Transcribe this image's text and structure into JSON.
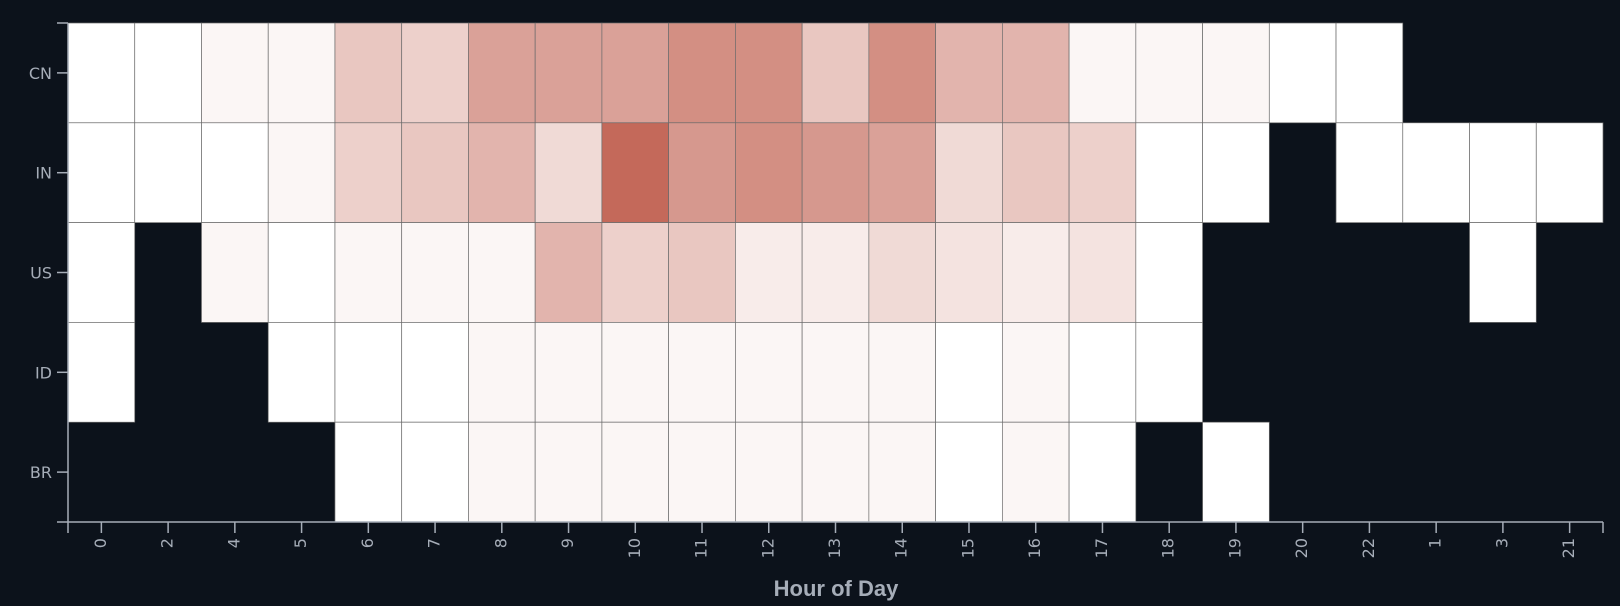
{
  "chart_data": {
    "type": "heatmap",
    "xlabel": "Hour of Day",
    "ylabel": "",
    "x_categories": [
      "0",
      "2",
      "4",
      "5",
      "6",
      "7",
      "8",
      "9",
      "10",
      "11",
      "12",
      "13",
      "14",
      "15",
      "16",
      "17",
      "18",
      "19",
      "20",
      "22",
      "1",
      "3",
      "21"
    ],
    "y_categories": [
      "CN",
      "IN",
      "US",
      "ID",
      "BR"
    ],
    "cells": [
      {
        "x": "0",
        "y": "CN",
        "value": 0
      },
      {
        "x": "2",
        "y": "CN",
        "value": 0
      },
      {
        "x": "4",
        "y": "CN",
        "value": 1
      },
      {
        "x": "5",
        "y": "CN",
        "value": 1
      },
      {
        "x": "6",
        "y": "CN",
        "value": 6
      },
      {
        "x": "7",
        "y": "CN",
        "value": 5
      },
      {
        "x": "8",
        "y": "CN",
        "value": 10
      },
      {
        "x": "9",
        "y": "CN",
        "value": 10
      },
      {
        "x": "10",
        "y": "CN",
        "value": 10
      },
      {
        "x": "11",
        "y": "CN",
        "value": 12
      },
      {
        "x": "12",
        "y": "CN",
        "value": 12
      },
      {
        "x": "13",
        "y": "CN",
        "value": 6
      },
      {
        "x": "14",
        "y": "CN",
        "value": 12
      },
      {
        "x": "15",
        "y": "CN",
        "value": 8
      },
      {
        "x": "16",
        "y": "CN",
        "value": 8
      },
      {
        "x": "17",
        "y": "CN",
        "value": 1
      },
      {
        "x": "18",
        "y": "CN",
        "value": 1
      },
      {
        "x": "19",
        "y": "CN",
        "value": 1
      },
      {
        "x": "20",
        "y": "CN",
        "value": 0
      },
      {
        "x": "22",
        "y": "CN",
        "value": 0
      },
      {
        "x": "0",
        "y": "IN",
        "value": 0
      },
      {
        "x": "2",
        "y": "IN",
        "value": 0
      },
      {
        "x": "4",
        "y": "IN",
        "value": 0
      },
      {
        "x": "5",
        "y": "IN",
        "value": 1
      },
      {
        "x": "6",
        "y": "IN",
        "value": 5
      },
      {
        "x": "7",
        "y": "IN",
        "value": 6
      },
      {
        "x": "8",
        "y": "IN",
        "value": 8
      },
      {
        "x": "9",
        "y": "IN",
        "value": 4
      },
      {
        "x": "10",
        "y": "IN",
        "value": 16
      },
      {
        "x": "11",
        "y": "IN",
        "value": 11
      },
      {
        "x": "12",
        "y": "IN",
        "value": 12
      },
      {
        "x": "13",
        "y": "IN",
        "value": 11
      },
      {
        "x": "14",
        "y": "IN",
        "value": 10
      },
      {
        "x": "15",
        "y": "IN",
        "value": 4
      },
      {
        "x": "16",
        "y": "IN",
        "value": 6
      },
      {
        "x": "17",
        "y": "IN",
        "value": 5
      },
      {
        "x": "18",
        "y": "IN",
        "value": 0
      },
      {
        "x": "19",
        "y": "IN",
        "value": 0
      },
      {
        "x": "22",
        "y": "IN",
        "value": 0
      },
      {
        "x": "1",
        "y": "IN",
        "value": 0
      },
      {
        "x": "3",
        "y": "IN",
        "value": 0
      },
      {
        "x": "21",
        "y": "IN",
        "value": 0
      },
      {
        "x": "0",
        "y": "US",
        "value": 0
      },
      {
        "x": "4",
        "y": "US",
        "value": 1
      },
      {
        "x": "5",
        "y": "US",
        "value": 0
      },
      {
        "x": "6",
        "y": "US",
        "value": 1
      },
      {
        "x": "7",
        "y": "US",
        "value": 1
      },
      {
        "x": "8",
        "y": "US",
        "value": 1
      },
      {
        "x": "9",
        "y": "US",
        "value": 8
      },
      {
        "x": "10",
        "y": "US",
        "value": 5
      },
      {
        "x": "11",
        "y": "US",
        "value": 6
      },
      {
        "x": "12",
        "y": "US",
        "value": 2
      },
      {
        "x": "13",
        "y": "US",
        "value": 2
      },
      {
        "x": "14",
        "y": "US",
        "value": 4
      },
      {
        "x": "15",
        "y": "US",
        "value": 3
      },
      {
        "x": "16",
        "y": "US",
        "value": 2
      },
      {
        "x": "17",
        "y": "US",
        "value": 3
      },
      {
        "x": "18",
        "y": "US",
        "value": 0
      },
      {
        "x": "3",
        "y": "US",
        "value": 0
      },
      {
        "x": "0",
        "y": "ID",
        "value": 0
      },
      {
        "x": "5",
        "y": "ID",
        "value": 0
      },
      {
        "x": "6",
        "y": "ID",
        "value": 0
      },
      {
        "x": "7",
        "y": "ID",
        "value": 0
      },
      {
        "x": "8",
        "y": "ID",
        "value": 1
      },
      {
        "x": "9",
        "y": "ID",
        "value": 1
      },
      {
        "x": "10",
        "y": "ID",
        "value": 1
      },
      {
        "x": "11",
        "y": "ID",
        "value": 1
      },
      {
        "x": "12",
        "y": "ID",
        "value": 1
      },
      {
        "x": "13",
        "y": "ID",
        "value": 1
      },
      {
        "x": "14",
        "y": "ID",
        "value": 1
      },
      {
        "x": "15",
        "y": "ID",
        "value": 0
      },
      {
        "x": "16",
        "y": "ID",
        "value": 1
      },
      {
        "x": "17",
        "y": "ID",
        "value": 0
      },
      {
        "x": "18",
        "y": "ID",
        "value": 0
      },
      {
        "x": "6",
        "y": "BR",
        "value": 0
      },
      {
        "x": "7",
        "y": "BR",
        "value": 0
      },
      {
        "x": "8",
        "y": "BR",
        "value": 1
      },
      {
        "x": "9",
        "y": "BR",
        "value": 1
      },
      {
        "x": "10",
        "y": "BR",
        "value": 1
      },
      {
        "x": "11",
        "y": "BR",
        "value": 1
      },
      {
        "x": "12",
        "y": "BR",
        "value": 1
      },
      {
        "x": "13",
        "y": "BR",
        "value": 1
      },
      {
        "x": "14",
        "y": "BR",
        "value": 1
      },
      {
        "x": "15",
        "y": "BR",
        "value": 0
      },
      {
        "x": "16",
        "y": "BR",
        "value": 1
      },
      {
        "x": "17",
        "y": "BR",
        "value": 0
      },
      {
        "x": "19",
        "y": "BR",
        "value": 0
      }
    ],
    "value_range": [
      0,
      16
    ],
    "color_scale": [
      "#ffffff",
      "#c4695a"
    ],
    "background_color": "#0c121b",
    "axis_color": "#a6adb8",
    "grid": false,
    "legend": "none"
  }
}
